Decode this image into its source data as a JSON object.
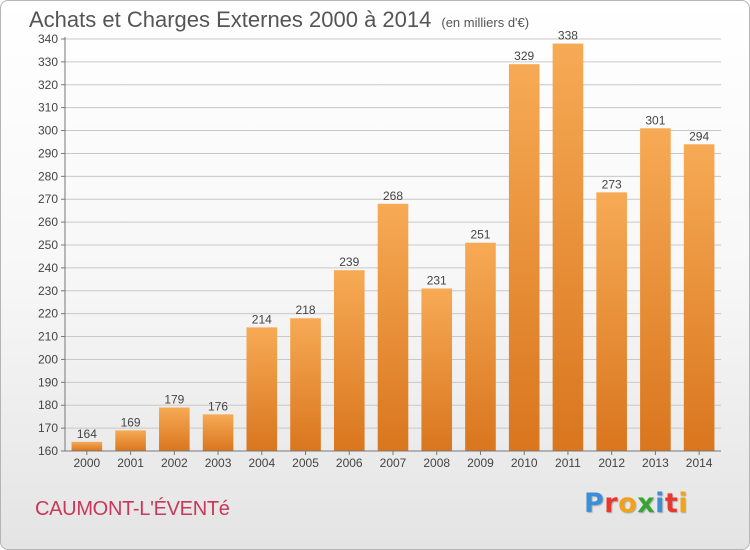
{
  "header": {
    "title": "Achats et Charges Externes 2000 à 2014",
    "unit": "(en milliers d'€)"
  },
  "footer": {
    "commune": "CAUMONT-L'ÉVENTé",
    "logo_letters": [
      "P",
      "r",
      "o",
      "x",
      "i",
      "t",
      "i"
    ],
    "logo_colors": [
      "#3b8fd8",
      "#e8372f",
      "#f1a21b",
      "#3aa335",
      "#3b8fd8",
      "#e8372f",
      "#f1a21b"
    ]
  },
  "colors": {
    "bar_light": "#f7aa55",
    "bar_dark": "#d9761e",
    "grid": "#c8c8c8"
  },
  "chart_data": {
    "type": "bar",
    "categories": [
      "2000",
      "2001",
      "2002",
      "2003",
      "2004",
      "2005",
      "2006",
      "2007",
      "2008",
      "2009",
      "2010",
      "2011",
      "2012",
      "2013",
      "2014"
    ],
    "values": [
      164,
      169,
      179,
      176,
      214,
      218,
      239,
      268,
      231,
      251,
      329,
      338,
      273,
      301,
      294
    ],
    "title": "Achats et Charges Externes 2000 à 2014",
    "xlabel": "",
    "ylabel": "",
    "ylim": [
      160,
      340
    ],
    "yticks": [
      160,
      170,
      180,
      190,
      200,
      210,
      220,
      230,
      240,
      250,
      260,
      270,
      280,
      290,
      300,
      310,
      320,
      330,
      340
    ],
    "grid": true,
    "data_labels": true
  }
}
